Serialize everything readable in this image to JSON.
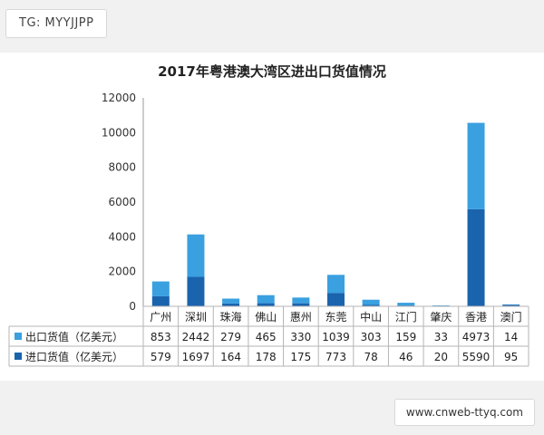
{
  "tag_label": "TG: MYYJJPP",
  "site_label": "www.cnweb-ttyq.com",
  "chart_data": {
    "type": "bar",
    "stacked": true,
    "title": "2017年粤港澳大湾区进出口货值情况",
    "categories": [
      "广州",
      "深圳",
      "珠海",
      "佛山",
      "惠州",
      "东莞",
      "中山",
      "江门",
      "肇庆",
      "香港",
      "澳门"
    ],
    "series": [
      {
        "name": "出口货值（亿美元）",
        "values": [
          853,
          2442,
          279,
          465,
          330,
          1039,
          303,
          159,
          33,
          4973,
          14
        ],
        "color": "#3aa0e0"
      },
      {
        "name": "进口货值（亿美元）",
        "values": [
          579,
          1697,
          164,
          178,
          175,
          773,
          78,
          46,
          20,
          5590,
          95
        ],
        "color": "#1a64ad"
      }
    ],
    "ylim": [
      0,
      12000
    ],
    "yticks": [
      0,
      2000,
      4000,
      6000,
      8000,
      10000,
      12000
    ],
    "legend": "data-table-below"
  }
}
